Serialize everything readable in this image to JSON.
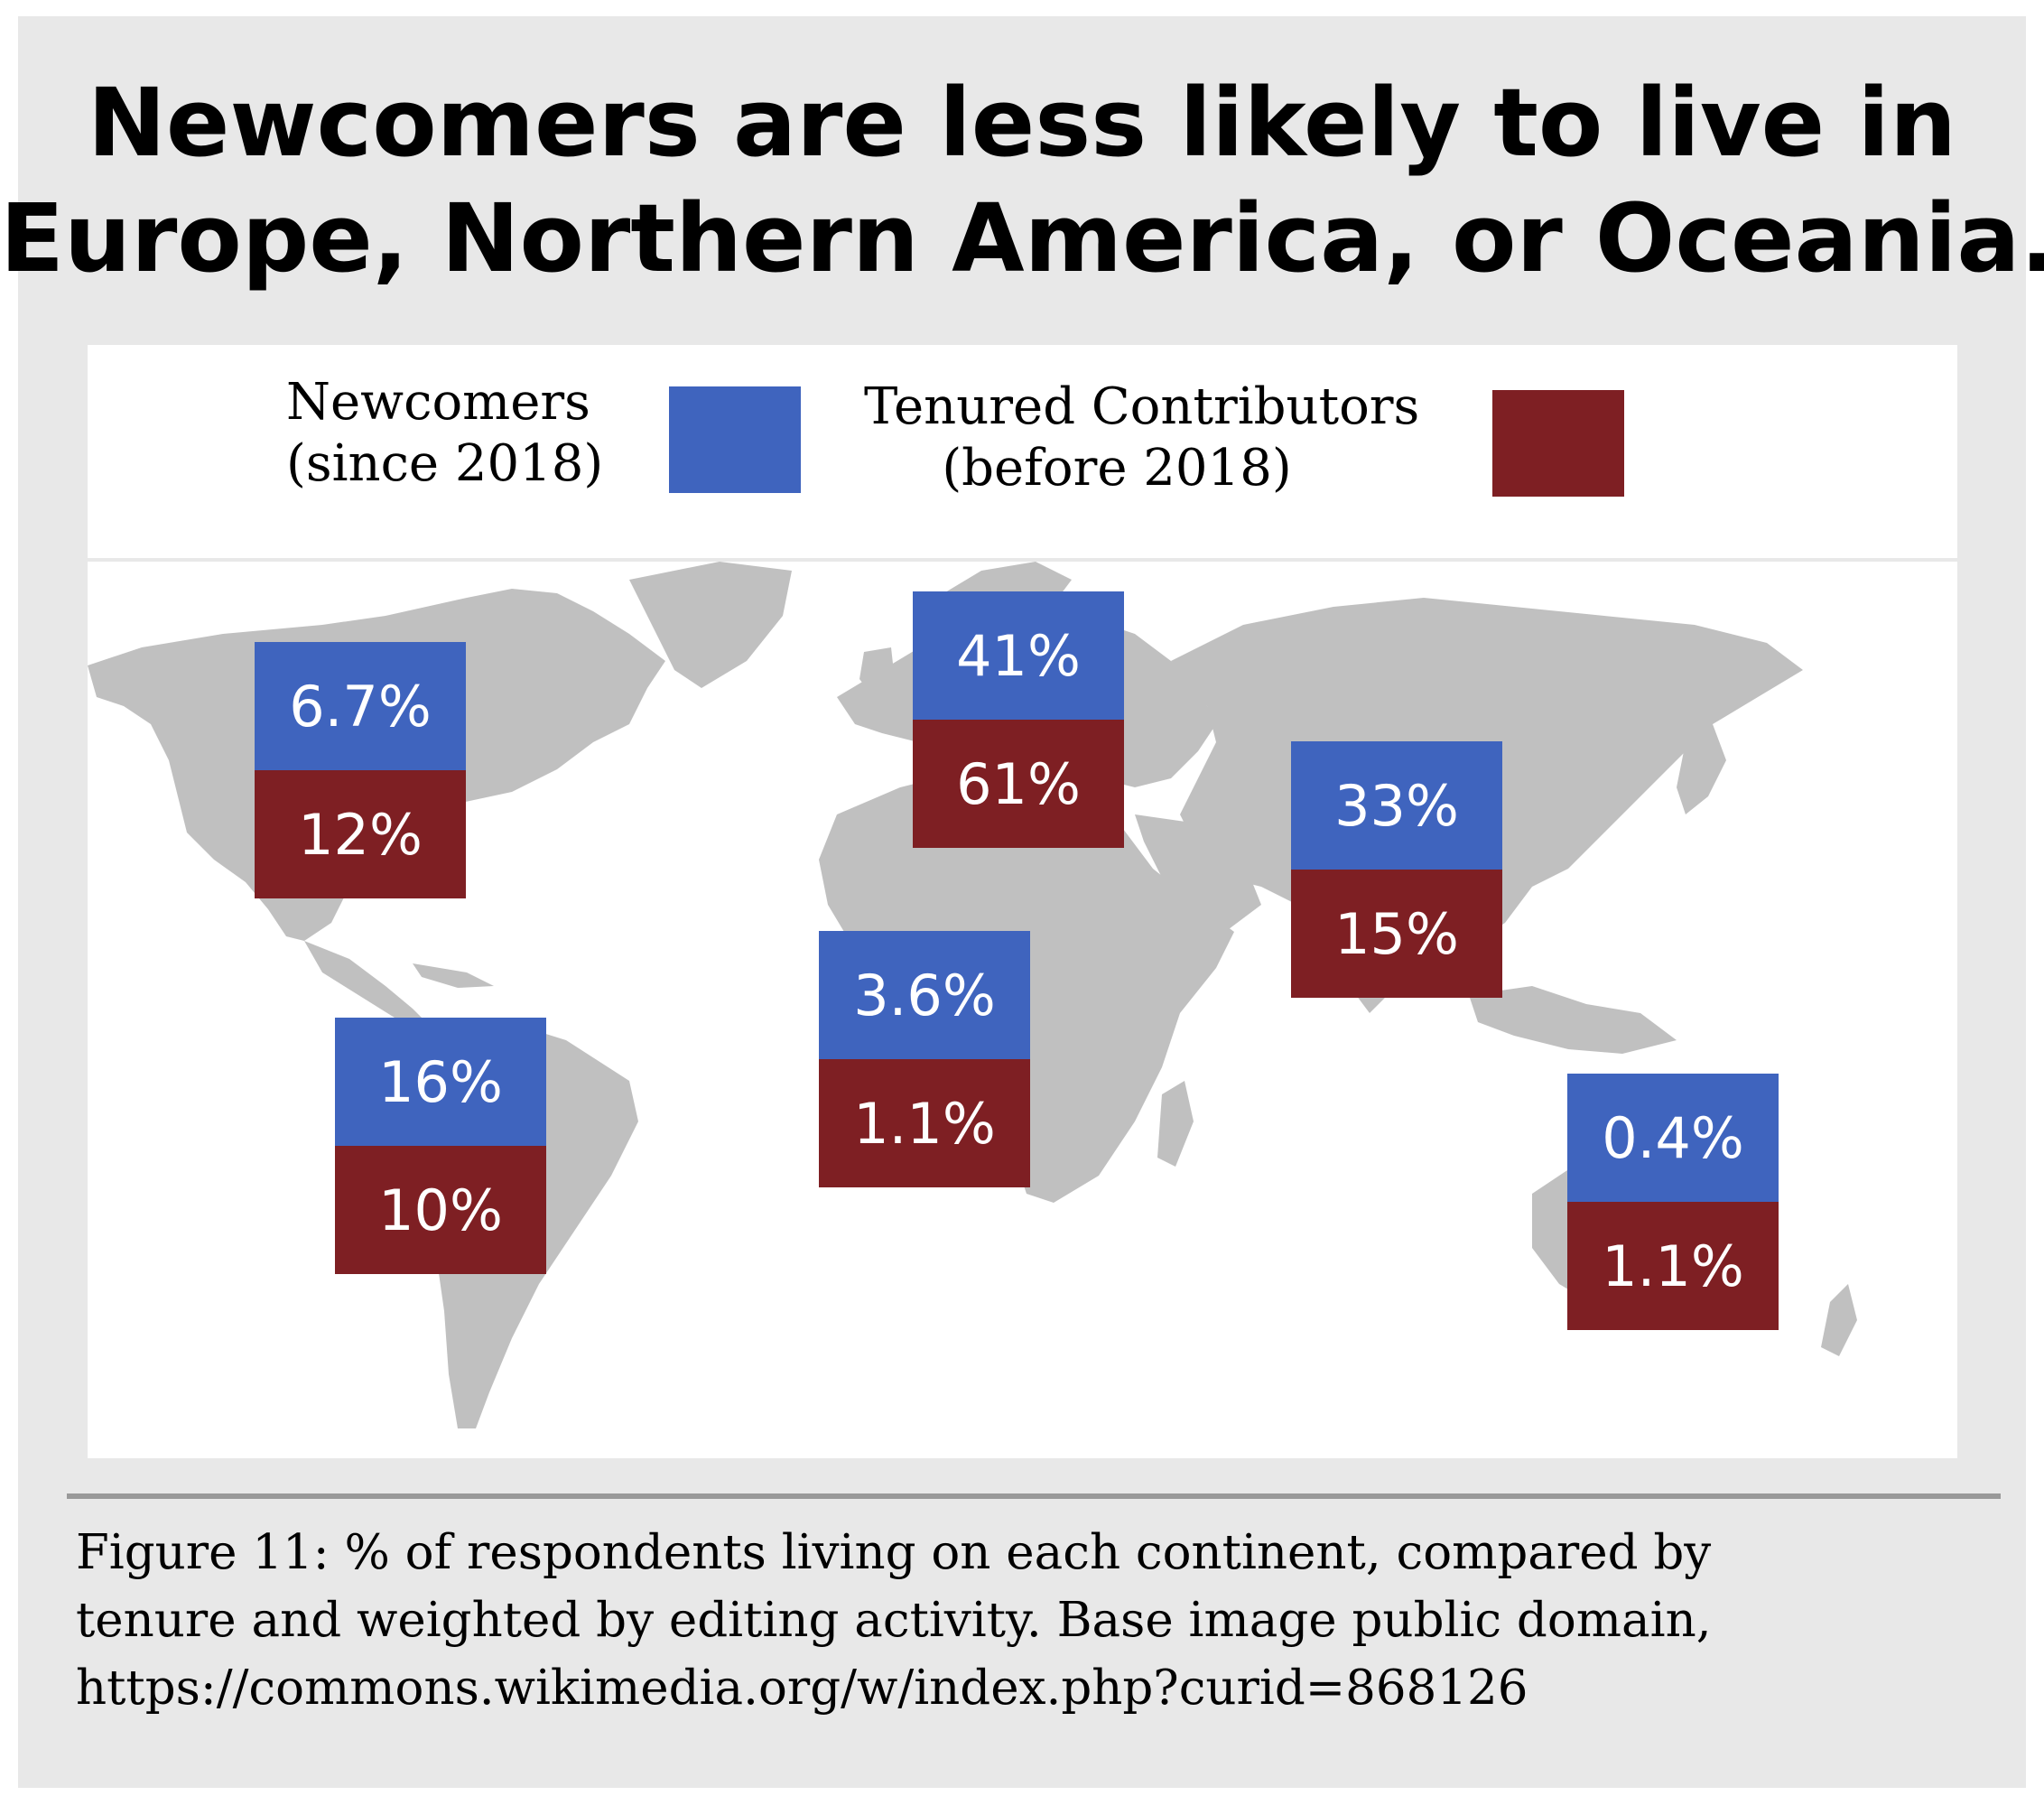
{
  "title": {
    "line1": "Newcomers are less likely to live in",
    "line2": "Europe, Northern America, or Oceania."
  },
  "legend": {
    "newcomers": {
      "line1": "Newcomers",
      "line2": "(since 2018)",
      "color": "#3f64be"
    },
    "tenured": {
      "line1": "Tenured Contributors",
      "line2": "(before 2018)",
      "color": "#7e1f23"
    }
  },
  "map_colors": {
    "land": "#c0c0c0",
    "background": "#ffffff"
  },
  "regions": [
    {
      "newcomers": "6.7%",
      "tenured": "12%"
    },
    {
      "newcomers": "41%",
      "tenured": "61%"
    },
    {
      "newcomers": "33%",
      "tenured": "15%"
    },
    {
      "newcomers": "3.6%",
      "tenured": "1.1%"
    },
    {
      "newcomers": "16%",
      "tenured": "10%"
    },
    {
      "newcomers": "0.4%",
      "tenured": "1.1%"
    }
  ],
  "caption": {
    "line1": "Figure 11: % of respondents living on each continent, compared by",
    "line2": "tenure and weighted by editing activity. Base image public domain,",
    "line3": "https://commons.wikimedia.org/w/index.php?curid=868126"
  }
}
